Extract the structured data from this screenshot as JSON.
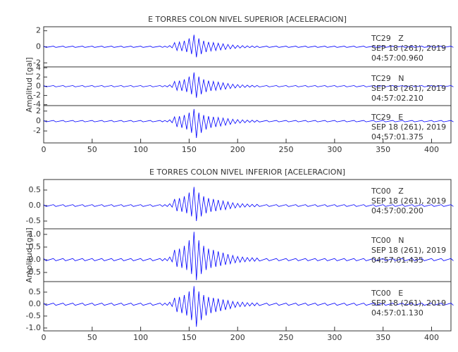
{
  "chart_data": [
    {
      "type": "line",
      "title": "E TORRES COLON NIVEL SUPERIOR [ACELERACION]",
      "ylabel": "Amplitud [gal]",
      "color": "#0000ff",
      "xlim": [
        0,
        420
      ],
      "xticks": [
        0,
        50,
        100,
        150,
        200,
        250,
        300,
        350,
        400
      ],
      "x": [
        0,
        10,
        20,
        30,
        40,
        50,
        60,
        70,
        80,
        90,
        100,
        110,
        120,
        125,
        130,
        135,
        140,
        145,
        150,
        155,
        160,
        165,
        170,
        175,
        180,
        185,
        190,
        195,
        200,
        205,
        210,
        215,
        220,
        230,
        240,
        250,
        260,
        270,
        280,
        290,
        300,
        310,
        320,
        330,
        340,
        350,
        360,
        370,
        380,
        390,
        400,
        410,
        420
      ],
      "panels": [
        {
          "label": "TC29   Z",
          "date": "SEP 18 (261), 2019",
          "time": "04:57:00.960",
          "ylim": [
            -2.5,
            2.5
          ],
          "yticks": [
            -2,
            0,
            2
          ],
          "max": [
            0.08,
            0.08,
            0.08,
            0.08,
            0.08,
            0.08,
            0.08,
            0.08,
            0.08,
            0.08,
            0.08,
            0.08,
            0.08,
            0.08,
            0.15,
            0.53,
            0.6,
            0.75,
            1.05,
            1.5,
            1.05,
            0.75,
            0.6,
            0.53,
            0.45,
            0.38,
            0.3,
            0.23,
            0.18,
            0.15,
            0.12,
            0.11,
            0.09,
            0.08,
            0.08,
            0.08,
            0.08,
            0.08,
            0.08,
            0.08,
            0.08,
            0.08,
            0.08,
            0.08,
            0.08,
            0.08,
            0.08,
            0.08,
            0.08,
            0.08,
            0.08,
            0.08,
            0.08
          ],
          "min": [
            -0.07,
            -0.07,
            -0.07,
            -0.07,
            -0.07,
            -0.07,
            -0.07,
            -0.07,
            -0.07,
            -0.07,
            -0.07,
            -0.07,
            -0.07,
            -0.07,
            -0.13,
            -0.46,
            -0.52,
            -0.65,
            -0.91,
            -1.3,
            -0.91,
            -0.65,
            -0.52,
            -0.46,
            -0.39,
            -0.33,
            -0.26,
            -0.2,
            -0.16,
            -0.13,
            -0.1,
            -0.09,
            -0.08,
            -0.07,
            -0.07,
            -0.07,
            -0.07,
            -0.07,
            -0.07,
            -0.07,
            -0.07,
            -0.07,
            -0.07,
            -0.07,
            -0.07,
            -0.07,
            -0.07,
            -0.07,
            -0.07,
            -0.07,
            -0.07,
            -0.07,
            -0.07
          ]
        },
        {
          "label": "TC29   N",
          "date": "SEP 18 (261), 2019",
          "time": "04:57:02.210",
          "ylim": [
            -4.2,
            4.2
          ],
          "yticks": [
            -4,
            -2,
            0,
            2,
            4
          ],
          "max": [
            0.15,
            0.15,
            0.15,
            0.15,
            0.15,
            0.15,
            0.15,
            0.15,
            0.15,
            0.15,
            0.15,
            0.15,
            0.15,
            0.15,
            0.3,
            1.05,
            1.2,
            1.5,
            2.1,
            3,
            2.1,
            1.5,
            1.2,
            1.05,
            0.9,
            0.75,
            0.6,
            0.45,
            0.36,
            0.3,
            0.24,
            0.21,
            0.18,
            0.15,
            0.15,
            0.15,
            0.15,
            0.15,
            0.15,
            0.15,
            0.15,
            0.15,
            0.15,
            0.15,
            0.15,
            0.15,
            0.15,
            0.15,
            0.15,
            0.15,
            0.15,
            0.15,
            0.15
          ],
          "min": [
            -0.13,
            -0.13,
            -0.13,
            -0.13,
            -0.13,
            -0.13,
            -0.13,
            -0.13,
            -0.13,
            -0.13,
            -0.13,
            -0.13,
            -0.13,
            -0.13,
            -0.25,
            -0.88,
            -1,
            -1.25,
            -1.75,
            -2.5,
            -1.75,
            -1.25,
            -1,
            -0.88,
            -0.75,
            -0.63,
            -0.5,
            -0.38,
            -0.3,
            -0.25,
            -0.2,
            -0.18,
            -0.15,
            -0.13,
            -0.13,
            -0.13,
            -0.13,
            -0.13,
            -0.13,
            -0.13,
            -0.13,
            -0.13,
            -0.13,
            -0.13,
            -0.13,
            -0.13,
            -0.13,
            -0.13,
            -0.13,
            -0.13,
            -0.13,
            -0.13,
            -0.13
          ]
        },
        {
          "label": "TC29   E",
          "date": "SEP 18 (261), 2019",
          "time": "04:57:01.375",
          "ylim": [
            -4.4,
            3.1
          ],
          "yticks": [
            -2,
            0,
            2
          ],
          "max": [
            0.12,
            0.12,
            0.12,
            0.12,
            0.12,
            0.12,
            0.12,
            0.12,
            0.12,
            0.12,
            0.12,
            0.12,
            0.12,
            0.12,
            0.24,
            0.84,
            0.96,
            1.2,
            1.68,
            2.4,
            1.68,
            1.2,
            0.96,
            0.84,
            0.72,
            0.6,
            0.48,
            0.36,
            0.29,
            0.24,
            0.19,
            0.17,
            0.14,
            0.12,
            0.12,
            0.12,
            0.12,
            0.12,
            0.12,
            0.12,
            0.12,
            0.12,
            0.12,
            0.12,
            0.12,
            0.12,
            0.12,
            0.12,
            0.12,
            0.12,
            0.12,
            0.12,
            0.12
          ],
          "min": [
            -0.17,
            -0.17,
            -0.17,
            -0.17,
            -0.17,
            -0.17,
            -0.17,
            -0.17,
            -0.17,
            -0.17,
            -0.17,
            -0.17,
            -0.17,
            -0.17,
            -0.34,
            -1.19,
            -1.36,
            -1.7,
            -2.38,
            -3.4,
            -2.38,
            -1.7,
            -1.36,
            -1.19,
            -1.02,
            -0.85,
            -0.68,
            -0.51,
            -0.41,
            -0.34,
            -0.27,
            -0.24,
            -0.2,
            -0.17,
            -0.17,
            -0.17,
            -0.17,
            -0.17,
            -0.17,
            -0.17,
            -0.17,
            -0.17,
            -0.17,
            -0.17,
            -0.17,
            -0.17,
            -0.17,
            -0.17,
            -0.17,
            -0.17,
            -0.17,
            -0.17,
            -0.17
          ]
        }
      ]
    },
    {
      "type": "line",
      "title": "E TORRES COLON NIVEL INFERIOR [ACELERACION]",
      "ylabel": "Amplitud [gal]",
      "color": "#0000ff",
      "xlim": [
        0,
        420
      ],
      "xticks": [
        0,
        50,
        100,
        150,
        200,
        250,
        300,
        350,
        400
      ],
      "x": [
        0,
        10,
        20,
        30,
        40,
        50,
        60,
        70,
        80,
        90,
        100,
        110,
        120,
        125,
        130,
        135,
        140,
        145,
        150,
        155,
        160,
        165,
        170,
        175,
        180,
        185,
        190,
        195,
        200,
        205,
        210,
        215,
        220,
        230,
        240,
        250,
        260,
        270,
        280,
        290,
        300,
        310,
        320,
        330,
        340,
        350,
        360,
        370,
        380,
        390,
        400,
        410,
        420
      ],
      "panels": [
        {
          "label": "TC00   Z",
          "date": "SEP 18 (261), 2019",
          "time": "04:57:00.200",
          "ylim": [
            -0.75,
            0.84
          ],
          "yticks": [
            {
              "value": -0.5,
              "label": "-0.5"
            },
            {
              "value": 0,
              "label": "0.0"
            },
            {
              "value": 0.5,
              "label": "0.5"
            }
          ],
          "max": [
            0.03,
            0.03,
            0.03,
            0.03,
            0.03,
            0.03,
            0.03,
            0.03,
            0.03,
            0.03,
            0.03,
            0.03,
            0.03,
            0.03,
            0.06,
            0.21,
            0.24,
            0.3,
            0.42,
            0.6,
            0.42,
            0.3,
            0.24,
            0.21,
            0.18,
            0.15,
            0.12,
            0.09,
            0.07,
            0.06,
            0.05,
            0.04,
            0.04,
            0.03,
            0.03,
            0.03,
            0.03,
            0.03,
            0.03,
            0.03,
            0.03,
            0.03,
            0.03,
            0.03,
            0.03,
            0.03,
            0.03,
            0.03,
            0.03,
            0.03,
            0.03,
            0.03,
            0.03
          ],
          "min": [
            -0.03,
            -0.03,
            -0.03,
            -0.03,
            -0.03,
            -0.03,
            -0.03,
            -0.03,
            -0.03,
            -0.03,
            -0.03,
            -0.03,
            -0.03,
            -0.03,
            -0.05,
            -0.18,
            -0.2,
            -0.25,
            -0.35,
            -0.5,
            -0.35,
            -0.25,
            -0.2,
            -0.18,
            -0.15,
            -0.13,
            -0.1,
            -0.08,
            -0.06,
            -0.05,
            -0.04,
            -0.04,
            -0.03,
            -0.03,
            -0.03,
            -0.03,
            -0.03,
            -0.03,
            -0.03,
            -0.03,
            -0.03,
            -0.03,
            -0.03,
            -0.03,
            -0.03,
            -0.03,
            -0.03,
            -0.03,
            -0.03,
            -0.03,
            -0.03,
            -0.03,
            -0.03
          ]
        },
        {
          "label": "TC00   N",
          "date": "SEP 18 (261), 2019",
          "time": "04:57:01.435",
          "ylim": [
            -0.86,
            1.22
          ],
          "yticks": [
            {
              "value": -0.5,
              "label": "-0.5"
            },
            {
              "value": 0,
              "label": "0.0"
            },
            {
              "value": 0.5,
              "label": "0.5"
            },
            {
              "value": 1,
              "label": "1.0"
            }
          ],
          "max": [
            0.05,
            0.05,
            0.05,
            0.05,
            0.05,
            0.05,
            0.05,
            0.05,
            0.05,
            0.05,
            0.05,
            0.05,
            0.05,
            0.05,
            0.11,
            0.39,
            0.44,
            0.55,
            0.77,
            1.1,
            0.77,
            0.55,
            0.44,
            0.39,
            0.33,
            0.28,
            0.22,
            0.17,
            0.13,
            0.11,
            0.09,
            0.08,
            0.07,
            0.05,
            0.05,
            0.05,
            0.05,
            0.05,
            0.05,
            0.05,
            0.05,
            0.05,
            0.05,
            0.05,
            0.05,
            0.05,
            0.05,
            0.05,
            0.05,
            0.05,
            0.05,
            0.05,
            0.05
          ],
          "min": [
            -0.04,
            -0.04,
            -0.04,
            -0.04,
            -0.04,
            -0.04,
            -0.04,
            -0.04,
            -0.04,
            -0.04,
            -0.04,
            -0.04,
            -0.04,
            -0.04,
            -0.08,
            -0.28,
            -0.32,
            -0.4,
            -0.56,
            -0.8,
            -0.56,
            -0.4,
            -0.32,
            -0.28,
            -0.24,
            -0.2,
            -0.16,
            -0.12,
            -0.1,
            -0.08,
            -0.06,
            -0.06,
            -0.05,
            -0.04,
            -0.04,
            -0.04,
            -0.04,
            -0.04,
            -0.04,
            -0.04,
            -0.04,
            -0.04,
            -0.04,
            -0.04,
            -0.04,
            -0.04,
            -0.04,
            -0.04,
            -0.04,
            -0.04,
            -0.04,
            -0.04,
            -0.04
          ]
        },
        {
          "label": "TC00   E",
          "date": "SEP 18 (261), 2019",
          "time": "04:57:01.130",
          "ylim": [
            -1.12,
            0.94
          ],
          "yticks": [
            {
              "value": -1,
              "label": "-1.0"
            },
            {
              "value": -0.5,
              "label": "-0.5"
            },
            {
              "value": 0,
              "label": "0.0"
            },
            {
              "value": 0.5,
              "label": "0.5"
            }
          ],
          "max": [
            0.04,
            0.04,
            0.04,
            0.04,
            0.04,
            0.04,
            0.04,
            0.04,
            0.04,
            0.04,
            0.04,
            0.04,
            0.04,
            0.04,
            0.08,
            0.26,
            0.3,
            0.38,
            0.53,
            0.75,
            0.53,
            0.38,
            0.3,
            0.26,
            0.23,
            0.19,
            0.15,
            0.11,
            0.09,
            0.08,
            0.06,
            0.05,
            0.05,
            0.04,
            0.04,
            0.04,
            0.04,
            0.04,
            0.04,
            0.04,
            0.04,
            0.04,
            0.04,
            0.04,
            0.04,
            0.04,
            0.04,
            0.04,
            0.04,
            0.04,
            0.04,
            0.04,
            0.04
          ],
          "min": [
            -0.05,
            -0.05,
            -0.05,
            -0.05,
            -0.05,
            -0.05,
            -0.05,
            -0.05,
            -0.05,
            -0.05,
            -0.05,
            -0.05,
            -0.05,
            -0.05,
            -0.1,
            -0.33,
            -0.38,
            -0.48,
            -0.67,
            -0.95,
            -0.67,
            -0.48,
            -0.38,
            -0.33,
            -0.29,
            -0.24,
            -0.19,
            -0.14,
            -0.11,
            -0.1,
            -0.08,
            -0.07,
            -0.06,
            -0.05,
            -0.05,
            -0.05,
            -0.05,
            -0.05,
            -0.05,
            -0.05,
            -0.05,
            -0.05,
            -0.05,
            -0.05,
            -0.05,
            -0.05,
            -0.05,
            -0.05,
            -0.05,
            -0.05,
            -0.05,
            -0.05,
            -0.05
          ]
        }
      ]
    }
  ]
}
